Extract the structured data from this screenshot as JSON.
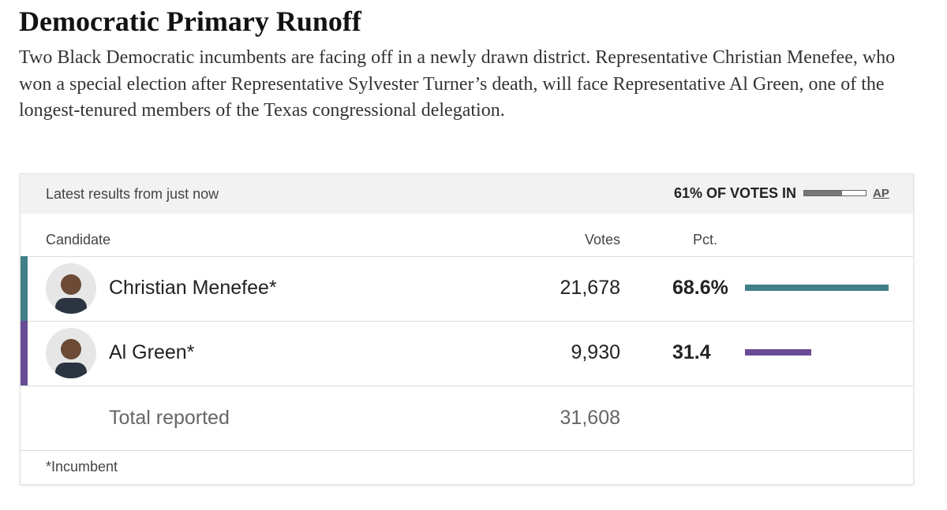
{
  "header": {
    "title": "Democratic Primary Runoff",
    "description": "Two Black Democratic incumbents are facing off in a newly drawn district. Representative Christian Menefee, who won a special election after Representative Sylvester Turner’s death, will face Representative Al Green, one of the longest-tenured members of the Texas congressional delegation."
  },
  "table": {
    "status": "Latest results from just now",
    "reporting": {
      "value": 61,
      "label": "61% OF VOTES IN"
    },
    "source": "AP",
    "columns": [
      "Candidate",
      "Votes",
      "Pct."
    ],
    "rows": [
      {
        "name": "Christian Menefee*",
        "votes": "21,678",
        "pct": {
          "value": 68.6,
          "label": "68.6%"
        },
        "color": "#417f89"
      },
      {
        "name": "Al Green*",
        "votes": "9,930",
        "pct": 31.4,
        "color": "#6a4c96"
      }
    ],
    "total": {
      "label": "Total reported",
      "votes": "31,608"
    },
    "footnote": "*Incumbent"
  }
}
